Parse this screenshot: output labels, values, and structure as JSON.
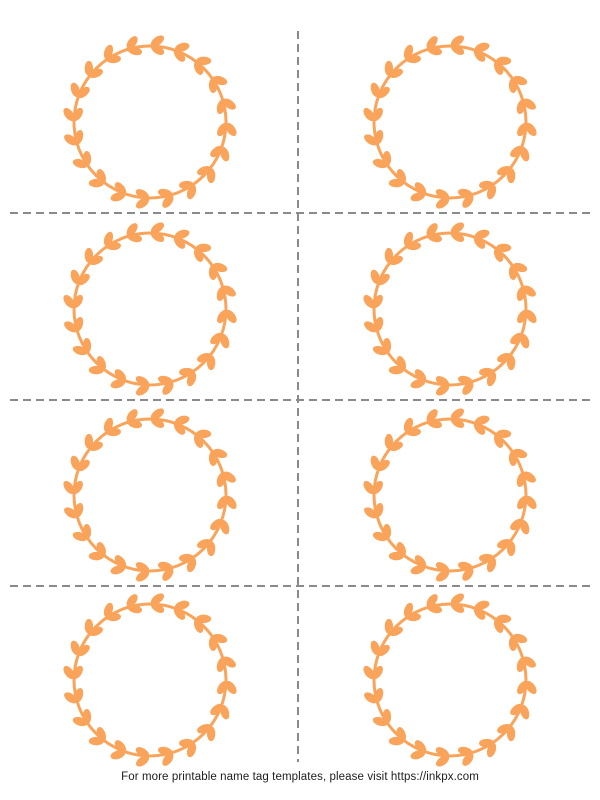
{
  "page": {
    "type": "printable-name-tag-template-sheet",
    "footer": {
      "text": "For more printable name tag templates, please visit https://inkpx.com",
      "url": "https://inkpx.com"
    }
  },
  "grid": {
    "rows": 4,
    "columns": 2,
    "tag_count": 8
  },
  "wreath": {
    "style": "leaf-vine-circle-frame",
    "leaf_pair_count": 20,
    "leaf_direction": "counter-clockwise",
    "content": ""
  },
  "colors": {
    "wreath": "#F9A45A",
    "cut_line": "#8A8A8A",
    "footer_text": "#1C1C1C",
    "background": "#FFFFFF"
  }
}
